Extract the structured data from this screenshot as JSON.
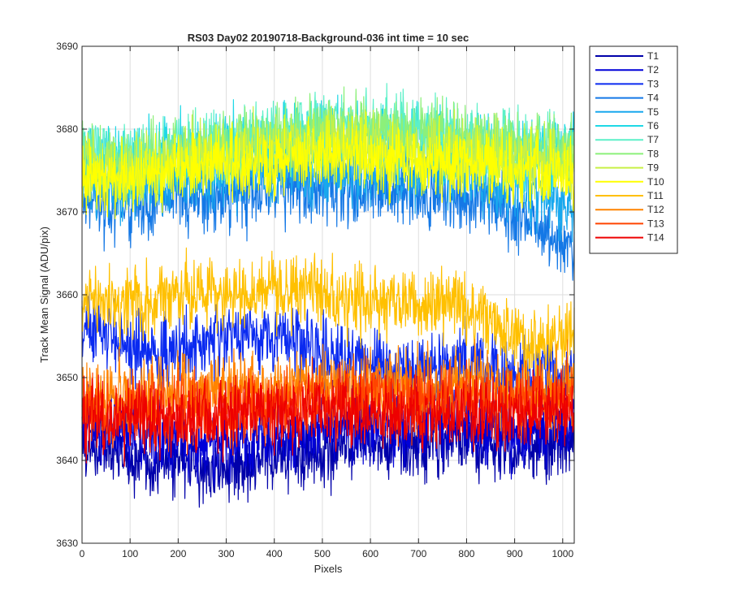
{
  "chart_data": {
    "type": "line",
    "title": "RS03 Day02 20190718-Background-036 int time = 10 sec",
    "xlabel": "Pixels",
    "ylabel": "Track Mean Signal (ADU/pix)",
    "xlim": [
      0,
      1024
    ],
    "ylim": [
      3630,
      3690
    ],
    "xticks": [
      0,
      100,
      200,
      300,
      400,
      500,
      600,
      700,
      800,
      900,
      1000
    ],
    "yticks": [
      3630,
      3640,
      3650,
      3660,
      3670,
      3680,
      3690
    ],
    "grid": true,
    "legend_position": "outside-top-right",
    "x": [
      0,
      64,
      128,
      192,
      256,
      320,
      384,
      448,
      512,
      576,
      640,
      704,
      768,
      832,
      896,
      960,
      1024
    ],
    "series": [
      {
        "name": "T1",
        "color": "#0000AA",
        "values": [
          3642,
          3641,
          3640,
          3640,
          3639,
          3639,
          3640,
          3641,
          3641,
          3642,
          3642,
          3642,
          3643,
          3642,
          3641,
          3642,
          3643
        ]
      },
      {
        "name": "T2",
        "color": "#0000D8",
        "values": [
          3645,
          3644,
          3643,
          3643,
          3642,
          3642,
          3643,
          3643,
          3644,
          3644,
          3644,
          3644,
          3645,
          3644,
          3643,
          3644,
          3645
        ]
      },
      {
        "name": "T3",
        "color": "#0A2AF0",
        "values": [
          3656,
          3655,
          3653,
          3653,
          3654,
          3655,
          3655,
          3655,
          3653,
          3652,
          3651,
          3651,
          3652,
          3651,
          3650,
          3650,
          3651
        ]
      },
      {
        "name": "T4",
        "color": "#1478E6",
        "values": [
          3671,
          3671,
          3671,
          3672,
          3672,
          3672,
          3673,
          3673,
          3673,
          3673,
          3673,
          3672,
          3672,
          3671,
          3670,
          3668,
          3666
        ]
      },
      {
        "name": "T5",
        "color": "#18A8EE",
        "values": [
          3674,
          3673,
          3673,
          3674,
          3674,
          3675,
          3675,
          3675,
          3675,
          3675,
          3675,
          3675,
          3675,
          3674,
          3673,
          3672,
          3670
        ]
      },
      {
        "name": "T6",
        "color": "#20D8E6",
        "values": [
          3677,
          3676,
          3676,
          3677,
          3677,
          3678,
          3678,
          3679,
          3679,
          3679,
          3679,
          3678,
          3678,
          3677,
          3677,
          3677,
          3677
        ]
      },
      {
        "name": "T7",
        "color": "#5CF0C8",
        "values": [
          3677,
          3676,
          3676,
          3677,
          3678,
          3678,
          3679,
          3680,
          3680,
          3680,
          3680,
          3679,
          3679,
          3678,
          3678,
          3678,
          3678
        ]
      },
      {
        "name": "T8",
        "color": "#8CF07A",
        "values": [
          3676,
          3676,
          3676,
          3677,
          3677,
          3678,
          3679,
          3679,
          3680,
          3680,
          3680,
          3679,
          3679,
          3678,
          3678,
          3678,
          3677
        ]
      },
      {
        "name": "T9",
        "color": "#C8F046",
        "values": [
          3675,
          3675,
          3675,
          3676,
          3677,
          3677,
          3678,
          3678,
          3678,
          3678,
          3678,
          3677,
          3677,
          3677,
          3676,
          3676,
          3676
        ]
      },
      {
        "name": "T10",
        "color": "#FFFF00",
        "values": [
          3674,
          3674,
          3675,
          3675,
          3676,
          3676,
          3676,
          3677,
          3677,
          3677,
          3676,
          3676,
          3676,
          3676,
          3675,
          3675,
          3675
        ]
      },
      {
        "name": "T11",
        "color": "#FFC000",
        "values": [
          3659,
          3659,
          3659,
          3660,
          3660,
          3660,
          3660,
          3660,
          3660,
          3659,
          3659,
          3659,
          3659,
          3658,
          3655,
          3654,
          3656
        ]
      },
      {
        "name": "T12",
        "color": "#FF8400",
        "values": [
          3648,
          3648,
          3648,
          3649,
          3649,
          3649,
          3649,
          3649,
          3649,
          3649,
          3649,
          3649,
          3649,
          3649,
          3648,
          3648,
          3649
        ]
      },
      {
        "name": "T13",
        "color": "#FF4400",
        "values": [
          3646,
          3646,
          3646,
          3646,
          3646,
          3646,
          3646,
          3647,
          3647,
          3647,
          3647,
          3647,
          3647,
          3647,
          3647,
          3647,
          3647
        ]
      },
      {
        "name": "T14",
        "color": "#EE0000",
        "values": [
          3645,
          3645,
          3645,
          3645,
          3645,
          3646,
          3646,
          3646,
          3646,
          3646,
          3646,
          3646,
          3646,
          3646,
          3646,
          3646,
          3646
        ]
      }
    ]
  }
}
